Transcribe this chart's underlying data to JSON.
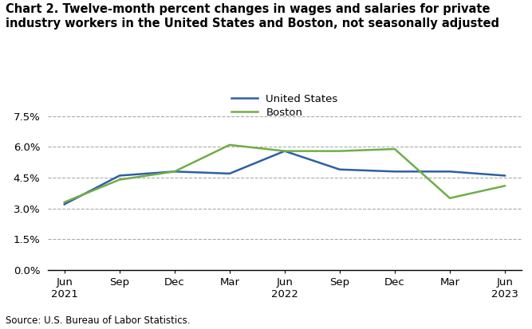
{
  "title": "Chart 2. Twelve-month percent changes in wages and salaries for private\nindustry workers in the United States and Boston, not seasonally adjusted",
  "x_labels": [
    "Jun\n2021",
    "Sep",
    "Dec",
    "Mar",
    "Jun\n2022",
    "Sep",
    "Dec",
    "Mar",
    "Jun\n2023"
  ],
  "us_values": [
    3.2,
    4.6,
    4.8,
    4.7,
    5.8,
    4.9,
    4.8,
    4.8,
    4.6
  ],
  "boston_values": [
    3.3,
    4.4,
    4.8,
    6.1,
    5.8,
    5.8,
    5.9,
    3.5,
    4.1
  ],
  "us_color": "#2E5FA3",
  "boston_color": "#70AD47",
  "ytick_labels": [
    "0.0%",
    "1.5%",
    "3.0%",
    "4.5%",
    "6.0%",
    "7.5%"
  ],
  "ytick_values": [
    0.0,
    1.5,
    3.0,
    4.5,
    6.0,
    7.5
  ],
  "source": "Source: U.S. Bureau of Labor Statistics.",
  "background_color": "#ffffff",
  "legend_labels": [
    "United States",
    "Boston"
  ]
}
